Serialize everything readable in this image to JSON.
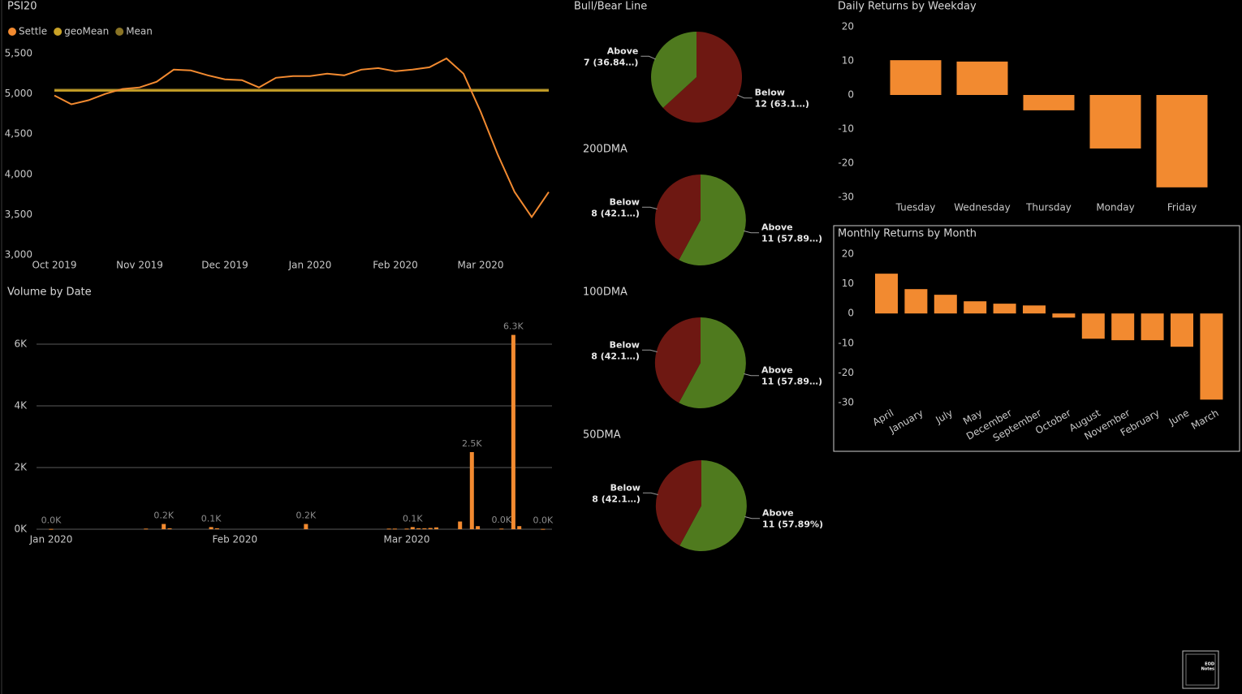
{
  "chart_data": [
    {
      "type": "line",
      "title": "PSI20",
      "categories": [
        "Oct 2019",
        null,
        null,
        null,
        null,
        "Nov 2019",
        null,
        null,
        null,
        null,
        "Dec 2019",
        null,
        null,
        null,
        null,
        "Jan 2020",
        null,
        null,
        null,
        null,
        "Feb 2020",
        null,
        null,
        null,
        null,
        "Mar 2020",
        null,
        null,
        null,
        null
      ],
      "series": [
        {
          "name": "Settle",
          "color": "#f28a30",
          "values": [
            4980,
            4870,
            4920,
            5000,
            5060,
            5080,
            5150,
            5300,
            5290,
            5230,
            5180,
            5170,
            5080,
            5200,
            5220,
            5220,
            5250,
            5230,
            5300,
            5320,
            5280,
            5300,
            5330,
            5440,
            5250,
            4780,
            4250,
            3780,
            3470,
            3780
          ]
        },
        {
          "name": "geoMean",
          "color": "#c9a227",
          "values": [
            5040,
            5040,
            5040,
            5040,
            5040,
            5040,
            5040,
            5040,
            5040,
            5040,
            5040,
            5040,
            5040,
            5040,
            5040,
            5040,
            5040,
            5040,
            5040,
            5040,
            5040,
            5040,
            5040,
            5040,
            5040,
            5040,
            5040,
            5040,
            5040,
            5040
          ]
        },
        {
          "name": "Mean",
          "color": "#8a7425",
          "values": [
            5050,
            5050,
            5050,
            5050,
            5050,
            5050,
            5050,
            5050,
            5050,
            5050,
            5050,
            5050,
            5050,
            5050,
            5050,
            5050,
            5050,
            5050,
            5050,
            5050,
            5050,
            5050,
            5050,
            5050,
            5050,
            5050,
            5050,
            5050,
            5050,
            5050
          ]
        }
      ],
      "ylim": [
        3000,
        5500
      ],
      "yticks": [
        {
          "value": 3000,
          "label": "3,000"
        },
        {
          "value": 3500,
          "label": "3,500"
        },
        {
          "value": 4000,
          "label": "4,000"
        },
        {
          "value": 4500,
          "label": "4,500"
        },
        {
          "value": 5000,
          "label": "5,000"
        },
        {
          "value": 5500,
          "label": "5,500"
        }
      ],
      "grid": false,
      "legend": "top-left"
    },
    {
      "type": "bar",
      "title": "Volume by Date",
      "categories": [
        "Jan 2020",
        null,
        null,
        null,
        null,
        null,
        null,
        null,
        null,
        null,
        null,
        null,
        null,
        null,
        null,
        null,
        null,
        null,
        null,
        null,
        null,
        null,
        null,
        null,
        null,
        null,
        null,
        null,
        null,
        null,
        null,
        "Feb 2020",
        null,
        null,
        null,
        null,
        null,
        null,
        null,
        null,
        null,
        null,
        null,
        null,
        null,
        null,
        null,
        null,
        null,
        null,
        null,
        null,
        null,
        null,
        null,
        null,
        null,
        null,
        null,
        null,
        "Mar 2020",
        null,
        null,
        null,
        null,
        null,
        null,
        null,
        null,
        null,
        null,
        null,
        null,
        null,
        null,
        null,
        null,
        null,
        null,
        null,
        null,
        null,
        null,
        null,
        null
      ],
      "values": [
        10,
        null,
        null,
        null,
        null,
        null,
        null,
        null,
        null,
        null,
        null,
        null,
        null,
        null,
        null,
        null,
        20,
        null,
        null,
        170,
        30,
        null,
        null,
        null,
        null,
        null,
        null,
        70,
        30,
        null,
        null,
        null,
        null,
        null,
        null,
        null,
        null,
        null,
        null,
        null,
        null,
        null,
        null,
        170,
        null,
        null,
        null,
        null,
        null,
        null,
        null,
        null,
        null,
        null,
        null,
        null,
        null,
        20,
        20,
        null,
        20,
        70,
        30,
        30,
        40,
        60,
        null,
        null,
        null,
        250,
        null,
        2500,
        100,
        null,
        null,
        null,
        20,
        null,
        6300,
        100,
        null,
        null,
        null,
        10,
        null
      ],
      "value_labels": [
        "0.0K",
        null,
        null,
        null,
        null,
        null,
        null,
        null,
        null,
        null,
        null,
        null,
        null,
        null,
        null,
        null,
        null,
        null,
        null,
        "0.2K",
        null,
        null,
        null,
        null,
        null,
        null,
        null,
        "0.1K",
        null,
        null,
        null,
        null,
        null,
        null,
        null,
        null,
        null,
        null,
        null,
        null,
        null,
        null,
        null,
        "0.2K",
        null,
        null,
        null,
        null,
        null,
        null,
        null,
        null,
        null,
        null,
        null,
        null,
        null,
        null,
        null,
        null,
        null,
        "0.1K",
        null,
        null,
        null,
        null,
        null,
        null,
        null,
        null,
        null,
        "2.5K",
        null,
        null,
        null,
        null,
        "0.0K",
        null,
        "6.3K",
        null,
        null,
        null,
        null,
        "0.0K",
        null
      ],
      "color": "#f28a30",
      "ylim": [
        0,
        7000
      ],
      "yticks": [
        {
          "value": 0,
          "label": "0K"
        },
        {
          "value": 2000,
          "label": "2K"
        },
        {
          "value": 4000,
          "label": "4K"
        },
        {
          "value": 6000,
          "label": "6K"
        }
      ],
      "grid": true
    },
    {
      "type": "pie",
      "title": "Bull/Bear Line",
      "categories": [
        "Below",
        "Above"
      ],
      "values": [
        12,
        7
      ],
      "value_labels": [
        "12 (63.1…)",
        "7 (36.84…)"
      ],
      "colors": [
        "#6e1812",
        "#4f7a1e"
      ]
    },
    {
      "type": "pie",
      "title": "200DMA",
      "categories": [
        "Above",
        "Below"
      ],
      "values": [
        11,
        8
      ],
      "value_labels": [
        "11 (57.89…)",
        "8 (42.1…)"
      ],
      "colors": [
        "#4f7a1e",
        "#6e1812"
      ]
    },
    {
      "type": "pie",
      "title": "100DMA",
      "categories": [
        "Above",
        "Below"
      ],
      "values": [
        11,
        8
      ],
      "value_labels": [
        "11 (57.89…)",
        "8 (42.1…)"
      ],
      "colors": [
        "#4f7a1e",
        "#6e1812"
      ]
    },
    {
      "type": "pie",
      "title": "50DMA",
      "categories": [
        "Above",
        "Below"
      ],
      "values": [
        11,
        8
      ],
      "value_labels": [
        "11 (57.89%)",
        "8 (42.1…)"
      ],
      "colors": [
        "#4f7a1e",
        "#6e1812"
      ]
    },
    {
      "type": "bar",
      "title": "Daily Returns by Weekday",
      "categories": [
        "Tuesday",
        "Wednesday",
        "Thursday",
        "Monday",
        "Friday"
      ],
      "values": [
        10.2,
        9.8,
        -4.5,
        -15.7,
        -27.1
      ],
      "color": "#f28a30",
      "ylim": [
        -30,
        20
      ],
      "yticks": [
        -30,
        -20,
        -10,
        0,
        10,
        20
      ],
      "grid": false
    },
    {
      "type": "bar",
      "title": "Monthly Returns by Month",
      "categories": [
        "April",
        "January",
        "July",
        "May",
        "December",
        "September",
        "October",
        "August",
        "November",
        "February",
        "June",
        "March"
      ],
      "values": [
        13.4,
        8.2,
        6.3,
        4.1,
        3.3,
        2.7,
        -1.4,
        -8.5,
        -9.0,
        -9.0,
        -11.2,
        -29.0
      ],
      "color": "#f28a30",
      "ylim": [
        -30,
        20
      ],
      "yticks": [
        -30,
        -20,
        -10,
        0,
        10,
        20
      ],
      "grid": false,
      "rotate_labels": true
    }
  ],
  "logo": {
    "line1": "EOD",
    "line2": "Notes"
  }
}
